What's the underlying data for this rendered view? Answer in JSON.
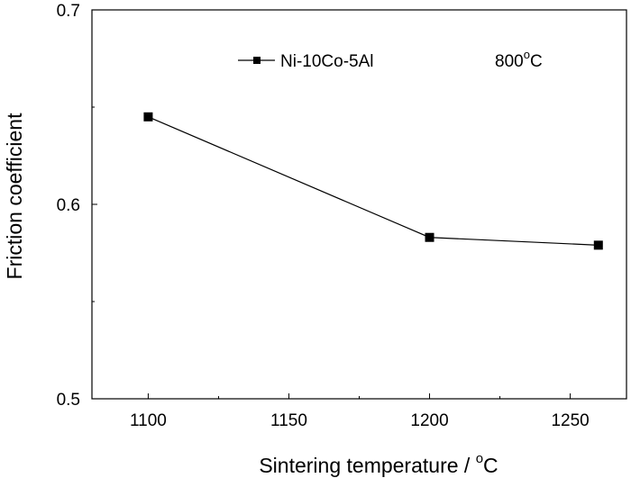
{
  "chart_data": {
    "type": "line",
    "xlabel": "Sintering temperature / °C",
    "xlabel_main": "Sintering temperature / ",
    "xlabel_sup": "o",
    "xlabel_tail": "C",
    "ylabel": "Friction coefficient",
    "xlim": [
      1080,
      1270
    ],
    "ylim": [
      0.5,
      0.7
    ],
    "x_ticks": [
      1100,
      1150,
      1200,
      1250
    ],
    "x_tick_labels": [
      "1100",
      "1150",
      "1200",
      "1250"
    ],
    "y_ticks": [
      0.5,
      0.6,
      0.7
    ],
    "y_tick_labels": [
      "0.5",
      "0.6",
      "0.7"
    ],
    "grid": false,
    "legend_position": "top-center",
    "series": [
      {
        "name": "Ni-10Co-5Al",
        "marker": "square",
        "color": "#000000",
        "x": [
          1100,
          1200,
          1260
        ],
        "y": [
          0.645,
          0.583,
          0.579
        ]
      }
    ],
    "annotation": {
      "text": "800°C",
      "main": "800",
      "sup": "o",
      "tail": "C"
    }
  }
}
